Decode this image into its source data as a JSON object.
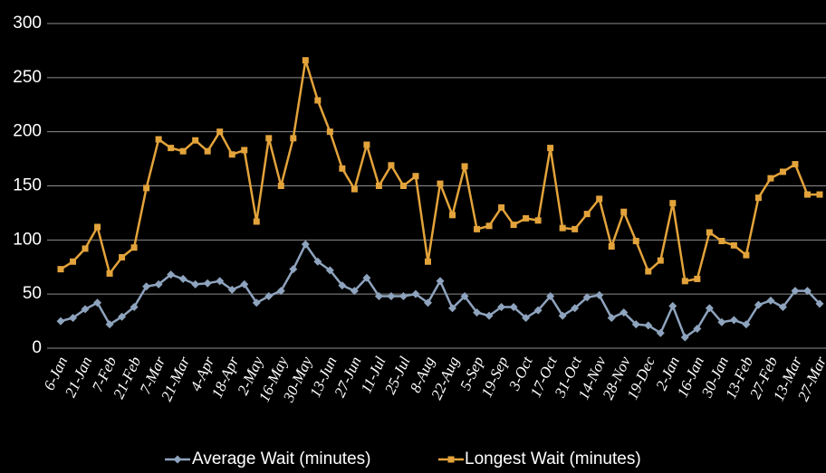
{
  "chart_data": {
    "type": "line",
    "categories": [
      "6-Jan",
      null,
      "21-Jan",
      null,
      "7-Feb",
      null,
      "21-Feb",
      null,
      "7-Mar",
      null,
      "21-Mar",
      null,
      "4-Apr",
      null,
      "18-Apr",
      null,
      "2-May",
      null,
      "16-May",
      null,
      "30-May",
      null,
      "13-Jun",
      null,
      "27-Jun",
      null,
      "11-Jul",
      null,
      "25-Jul",
      null,
      "8-Aug",
      null,
      "22-Aug",
      null,
      "5-Sep",
      null,
      "19-Sep",
      null,
      "3-Oct",
      null,
      "17-Oct",
      null,
      "31-Oct",
      null,
      "14-Nov",
      null,
      "28-Nov",
      null,
      "19-Dec",
      null,
      "2-Jan",
      null,
      "16-Jan",
      null,
      "30-Jan",
      null,
      "13-Feb",
      null,
      "27-Feb",
      null,
      "13-Mar",
      null,
      "27-Mar"
    ],
    "series": [
      {
        "name": "Average Wait (minutes)",
        "color": "#8ea3bd",
        "marker": "diamond",
        "values": [
          25,
          28,
          36,
          42,
          22,
          29,
          38,
          57,
          59,
          68,
          64,
          59,
          60,
          62,
          54,
          59,
          42,
          48,
          53,
          73,
          96,
          80,
          72,
          58,
          53,
          65,
          48,
          48,
          48,
          50,
          42,
          62,
          37,
          48,
          33,
          30,
          38,
          38,
          28,
          35,
          48,
          30,
          37,
          47,
          49,
          28,
          33,
          22,
          21,
          14,
          39,
          10,
          18,
          37,
          24,
          26,
          22,
          40,
          44,
          38,
          53,
          53,
          41
        ]
      },
      {
        "name": "Longest Wait (minutes)",
        "color": "#e3a33b",
        "marker": "square",
        "values": [
          73,
          80,
          92,
          112,
          69,
          84,
          93,
          148,
          193,
          185,
          182,
          192,
          182,
          200,
          179,
          183,
          117,
          194,
          150,
          194,
          266,
          229,
          200,
          166,
          147,
          188,
          150,
          169,
          150,
          159,
          80,
          152,
          123,
          168,
          110,
          113,
          130,
          114,
          120,
          118,
          185,
          111,
          110,
          124,
          138,
          94,
          126,
          99,
          71,
          81,
          134,
          62,
          64,
          107,
          99,
          95,
          86,
          139,
          157,
          163,
          170,
          142,
          142
        ]
      }
    ],
    "ylim": [
      0,
      300
    ],
    "yticks": [
      0,
      50,
      100,
      150,
      200,
      250,
      300
    ],
    "grid": true,
    "legend": "bottom"
  }
}
